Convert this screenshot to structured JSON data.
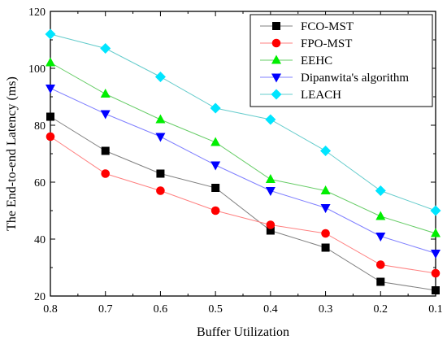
{
  "chart_data": {
    "type": "line",
    "title": "",
    "xlabel": "Buffer Utilization",
    "ylabel": "The End-to-end Latency (ms)",
    "x": [
      0.8,
      0.7,
      0.6,
      0.5,
      0.4,
      0.3,
      0.2,
      0.1
    ],
    "x_tick_labels": [
      "0.8",
      "0.7",
      "0.6",
      "0.5",
      "0.4",
      "0.3",
      "0.2",
      "0.1"
    ],
    "y_ticks": [
      20,
      40,
      60,
      80,
      100,
      120
    ],
    "y_tick_labels": [
      "20",
      "40",
      "60",
      "80",
      "100",
      "120"
    ],
    "xlim": [
      0.8,
      0.1
    ],
    "ylim": [
      20,
      120
    ],
    "grid": false,
    "legend_position": "top-right",
    "series": [
      {
        "name": "FCO-MST",
        "marker": "square",
        "marker_color": "#000000",
        "line_color": "#808080",
        "values": [
          83,
          71,
          63,
          58,
          43,
          37,
          25,
          22
        ]
      },
      {
        "name": "FPO-MST",
        "marker": "circle",
        "marker_color": "#ff0000",
        "line_color": "#ff8080",
        "values": [
          76,
          63,
          57,
          50,
          45,
          42,
          31,
          28
        ]
      },
      {
        "name": "EEHC",
        "marker": "triangle-up",
        "marker_color": "#00ee00",
        "line_color": "#66cc66",
        "values": [
          102,
          91,
          82,
          74,
          61,
          57,
          48,
          42
        ]
      },
      {
        "name": "Dipanwita's algorithm",
        "marker": "triangle-down",
        "marker_color": "#0000ff",
        "line_color": "#8080ff",
        "values": [
          93,
          84,
          76,
          66,
          57,
          51,
          41,
          35
        ]
      },
      {
        "name": "LEACH",
        "marker": "diamond",
        "marker_color": "#00e5ff",
        "line_color": "#66cccc",
        "values": [
          112,
          107,
          97,
          86,
          82,
          71,
          57,
          50
        ]
      }
    ]
  }
}
